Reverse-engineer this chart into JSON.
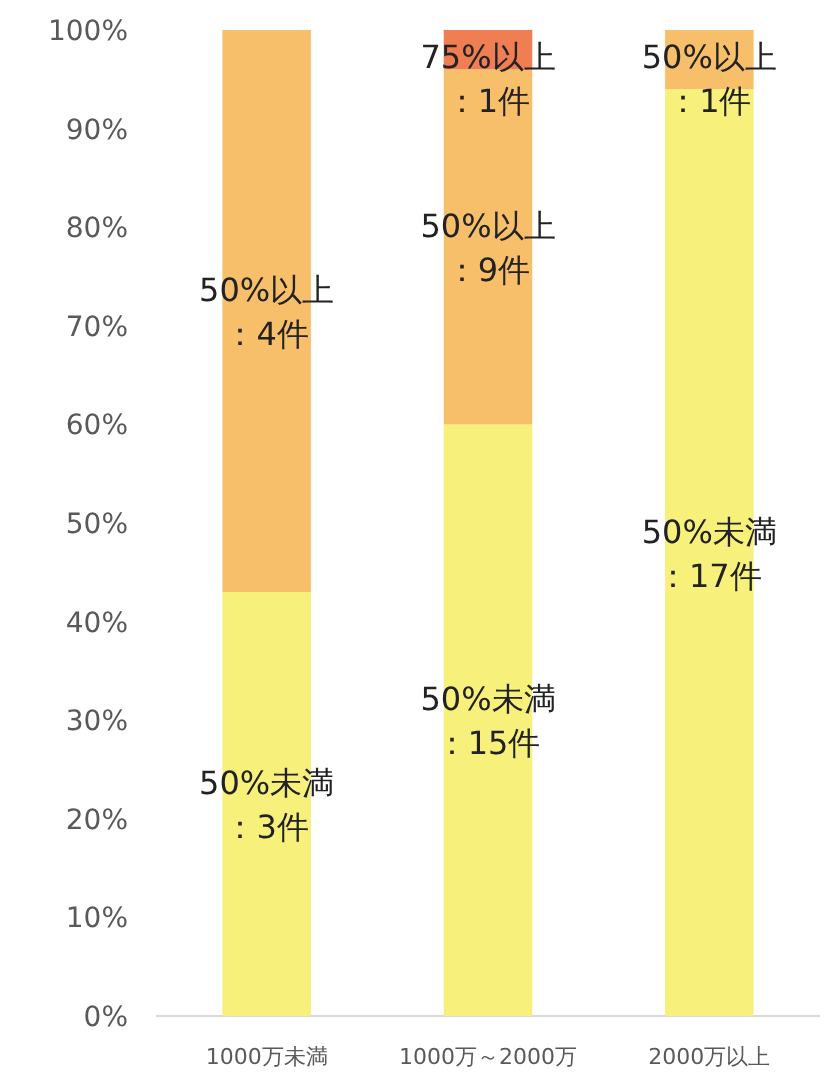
{
  "chart_data": {
    "type": "bar",
    "stacked": true,
    "categories": [
      "1000万未満",
      "1000万～2000万",
      "2000万以上"
    ],
    "series": [
      {
        "color": "#f7f17c",
        "values": [
          43,
          60,
          94
        ]
      },
      {
        "color": "#f8bf6b",
        "values": [
          57,
          36,
          6
        ]
      },
      {
        "color": "#ef7e52",
        "values": [
          0,
          4,
          0
        ]
      }
    ],
    "annotations": [
      "50%未満：3件",
      "50%以上：4件",
      "50%未満：15件",
      "50%以上：9件",
      "75%以上：1件",
      "50%未満：17件",
      "50%以上：1件"
    ],
    "ylim": [
      0,
      100
    ],
    "yticks": [
      {
        "value": 0,
        "label": "0%"
      },
      {
        "value": 10,
        "label": "10%"
      },
      {
        "value": 20,
        "label": "20%"
      },
      {
        "value": 30,
        "label": "30%"
      },
      {
        "value": 40,
        "label": "40%"
      },
      {
        "value": 50,
        "label": "50%"
      },
      {
        "value": 60,
        "label": "60%"
      },
      {
        "value": 70,
        "label": "70%"
      },
      {
        "value": 80,
        "label": "80%"
      },
      {
        "value": 90,
        "label": "90%"
      },
      {
        "value": 100,
        "label": "100%"
      }
    ]
  }
}
